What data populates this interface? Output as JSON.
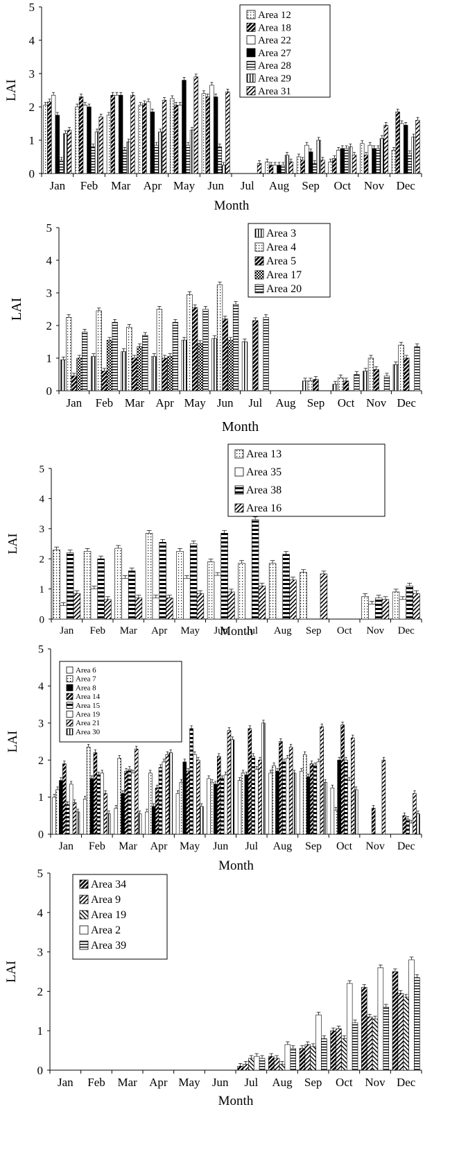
{
  "chart_data": [
    {
      "type": "bar",
      "ylabel": "LAI",
      "xlabel": "Month",
      "ylim": [
        0,
        5
      ],
      "yticks": [
        "0",
        "1",
        "2",
        "3",
        "4",
        "5"
      ],
      "categories": [
        "Jan",
        "Feb",
        "Mar",
        "Apr",
        "May",
        "Jun",
        "Jul",
        "Aug",
        "Sep",
        "Oct",
        "Nov",
        "Dec"
      ],
      "legend_placement": "top-right",
      "series": [
        {
          "name": "Area 12",
          "pattern": "dots",
          "values": [
            2.05,
            2.0,
            1.75,
            2.05,
            2.25,
            2.4,
            0,
            0.35,
            0.5,
            0.35,
            0.9,
            0.7
          ]
        },
        {
          "name": "Area 18",
          "pattern": "diagcheck",
          "values": [
            2.15,
            2.3,
            2.35,
            2.1,
            2.05,
            2.3,
            0,
            0.25,
            0.4,
            0.45,
            0.55,
            1.85
          ]
        },
        {
          "name": "Area 22",
          "pattern": "white",
          "values": [
            2.35,
            2.05,
            2.35,
            2.15,
            2.05,
            2.65,
            0,
            0.25,
            0.85,
            0.7,
            0.85,
            1.5
          ]
        },
        {
          "name": "Area 27",
          "pattern": "black",
          "values": [
            1.75,
            2.0,
            2.35,
            1.85,
            2.8,
            2.3,
            0,
            0.25,
            0.65,
            0.75,
            0.75,
            1.45
          ]
        },
        {
          "name": "Area 28",
          "pattern": "hlines",
          "values": [
            0.4,
            0.8,
            0.7,
            0.85,
            0.85,
            0.8,
            0,
            0.25,
            0.3,
            0.75,
            0.75,
            0.6
          ]
        },
        {
          "name": "Area 29",
          "pattern": "vlines",
          "values": [
            1.2,
            1.25,
            0.95,
            1.25,
            1.3,
            0.25,
            0,
            0.55,
            1.0,
            0.8,
            1.05,
            1.1
          ]
        },
        {
          "name": "Area 31",
          "pattern": "diag",
          "values": [
            1.3,
            1.7,
            2.35,
            2.2,
            2.9,
            2.45,
            0.3,
            0.35,
            0.4,
            0.55,
            1.45,
            1.6
          ]
        }
      ]
    },
    {
      "type": "bar",
      "ylabel": "LAI",
      "xlabel": "Month",
      "ylim": [
        0,
        5
      ],
      "yticks": [
        "0",
        "1",
        "2",
        "3",
        "4",
        "5"
      ],
      "categories": [
        "Jan",
        "Feb",
        "Mar",
        "Apr",
        "May",
        "Jun",
        "Jul",
        "Aug",
        "Sep",
        "Oct",
        "Nov",
        "Dec"
      ],
      "legend_placement": "top-right",
      "series": [
        {
          "name": "Area 3",
          "pattern": "vlines",
          "values": [
            0.95,
            1.05,
            1.2,
            1.05,
            1.55,
            1.6,
            1.5,
            0,
            0.3,
            0.2,
            0.6,
            0.8
          ]
        },
        {
          "name": "Area 4",
          "pattern": "dots",
          "values": [
            2.25,
            2.45,
            1.95,
            2.5,
            2.95,
            3.25,
            0,
            0,
            0.3,
            0.4,
            1.0,
            1.4
          ]
        },
        {
          "name": "Area 5",
          "pattern": "diagcheck",
          "values": [
            0.45,
            0.6,
            1.0,
            1.0,
            2.55,
            2.2,
            2.15,
            0,
            0.35,
            0.3,
            0.65,
            1.0
          ]
        },
        {
          "name": "Area 17",
          "pattern": "checker",
          "values": [
            1.0,
            1.55,
            1.35,
            1.05,
            1.45,
            1.55,
            0,
            0,
            0,
            0,
            0,
            0
          ]
        },
        {
          "name": "Area 20",
          "pattern": "hlines",
          "values": [
            1.8,
            2.1,
            1.7,
            2.1,
            2.5,
            2.65,
            2.25,
            0,
            0,
            0.5,
            0.45,
            1.35
          ]
        }
      ]
    },
    {
      "type": "bar",
      "ylabel": "LAI",
      "xlabel": "Month",
      "ylim": [
        0,
        5
      ],
      "yticks": [
        "0",
        "1",
        "2",
        "3",
        "4",
        "5"
      ],
      "categories": [
        "Jan",
        "Feb",
        "Mar",
        "Apr",
        "May",
        "Jun",
        "Jul",
        "Aug",
        "Sep",
        "Oct",
        "Nov",
        "Dec"
      ],
      "legend_placement": "top-right",
      "series": [
        {
          "name": "Area 13",
          "pattern": "dots",
          "values": [
            2.3,
            2.25,
            2.35,
            2.85,
            2.25,
            1.9,
            1.85,
            1.85,
            1.55,
            0,
            0.75,
            0.9
          ]
        },
        {
          "name": "Area 35",
          "pattern": "white",
          "values": [
            0.45,
            1.0,
            1.35,
            0.7,
            1.35,
            1.45,
            0,
            0,
            0,
            0,
            0.5,
            0.65
          ]
        },
        {
          "name": "Area 38",
          "pattern": "hbands",
          "values": [
            2.2,
            2.0,
            1.6,
            2.55,
            2.5,
            2.85,
            3.3,
            2.15,
            0,
            0,
            0.7,
            1.1
          ]
        },
        {
          "name": "Area 16",
          "pattern": "diag",
          "values": [
            0.85,
            0.65,
            0.7,
            0.7,
            0.85,
            0.9,
            1.1,
            1.3,
            1.5,
            0,
            0.65,
            0.85
          ]
        }
      ]
    },
    {
      "type": "bar",
      "ylabel": "LAI",
      "xlabel": "Month",
      "ylim": [
        0,
        5
      ],
      "yticks": [
        "0",
        "1",
        "2",
        "3",
        "4",
        "5"
      ],
      "categories": [
        "Jan",
        "Feb",
        "Mar",
        "Apr",
        "May",
        "Jun",
        "Jul",
        "Aug",
        "Sep",
        "Oct",
        "Nov",
        "Dec"
      ],
      "xtick_labels": [
        "Jan",
        "Feb",
        "Mar",
        "Apr",
        "May",
        "Jun",
        "Jul",
        "Aug",
        "Sep",
        "Oct",
        "Nov",
        "Dec"
      ],
      "legend_placement": "top-left",
      "series": [
        {
          "name": "Area 6",
          "pattern": "white",
          "values": [
            1.0,
            0.95,
            0.7,
            0.6,
            1.1,
            1.5,
            1.45,
            1.65,
            1.7,
            1.25,
            0,
            0
          ]
        },
        {
          "name": "Area 7",
          "pattern": "dots",
          "values": [
            1.2,
            2.35,
            2.05,
            1.65,
            1.4,
            1.4,
            1.65,
            1.85,
            2.15,
            0.65,
            0,
            0
          ]
        },
        {
          "name": "Area 8",
          "pattern": "black",
          "values": [
            1.45,
            1.5,
            1.1,
            0.75,
            1.95,
            1.35,
            1.6,
            1.7,
            1.55,
            2.0,
            0,
            0
          ]
        },
        {
          "name": "Area 14",
          "pattern": "diagcheck",
          "values": [
            1.9,
            2.2,
            1.7,
            1.25,
            1.7,
            2.1,
            2.85,
            2.5,
            1.9,
            2.95,
            0.7,
            0.5
          ]
        },
        {
          "name": "Area 15",
          "pattern": "hbands",
          "values": [
            0.8,
            1.6,
            1.75,
            1.8,
            2.85,
            1.5,
            2.1,
            1.95,
            1.85,
            2.0,
            0,
            0.4
          ]
        },
        {
          "name": "Area 19",
          "pattern": "white",
          "values": [
            1.35,
            1.65,
            1.65,
            1.95,
            2.15,
            1.6,
            1.75,
            2.05,
            1.95,
            1.45,
            0,
            0.3
          ]
        },
        {
          "name": "Area 21",
          "pattern": "diag",
          "values": [
            0.85,
            1.1,
            2.3,
            2.15,
            2.0,
            2.8,
            2.0,
            2.35,
            2.9,
            2.6,
            2.0,
            1.1
          ]
        },
        {
          "name": "Area 30",
          "pattern": "vlines",
          "values": [
            0.6,
            0.55,
            0.55,
            2.2,
            0.75,
            2.55,
            3.0,
            1.65,
            1.4,
            1.2,
            0,
            0.55
          ]
        }
      ]
    },
    {
      "type": "bar",
      "ylabel": "LAI",
      "xlabel": "Month",
      "ylim": [
        0,
        5
      ],
      "yticks": [
        "0",
        "1",
        "2",
        "3",
        "4",
        "5"
      ],
      "categories": [
        "Jan",
        "Feb",
        "Mar",
        "Apr",
        "May",
        "Jun",
        "Jul",
        "Aug",
        "Sep",
        "Oct",
        "Nov",
        "Dec"
      ],
      "legend_placement": "top-left",
      "series": [
        {
          "name": "Area 34",
          "pattern": "diagcheck",
          "values": [
            0,
            0,
            0,
            0,
            0,
            0,
            0.1,
            0.35,
            0.55,
            1.0,
            2.1,
            2.5
          ]
        },
        {
          "name": "Area 9",
          "pattern": "diag",
          "values": [
            0,
            0,
            0,
            0,
            0,
            0,
            0.15,
            0.3,
            0.65,
            1.05,
            1.35,
            1.95
          ]
        },
        {
          "name": "Area 19",
          "pattern": "diag2",
          "values": [
            0,
            0,
            0,
            0,
            0,
            0,
            0.3,
            0.15,
            0.6,
            0.8,
            1.3,
            1.85
          ]
        },
        {
          "name": "Area 2",
          "pattern": "white",
          "values": [
            0,
            0,
            0,
            0,
            0,
            0,
            0.35,
            0.65,
            1.4,
            2.2,
            2.6,
            2.8
          ]
        },
        {
          "name": "Area 39",
          "pattern": "hlines",
          "values": [
            0,
            0,
            0,
            0,
            0,
            0,
            0.3,
            0.55,
            0.8,
            1.2,
            1.6,
            2.35
          ]
        }
      ]
    }
  ]
}
